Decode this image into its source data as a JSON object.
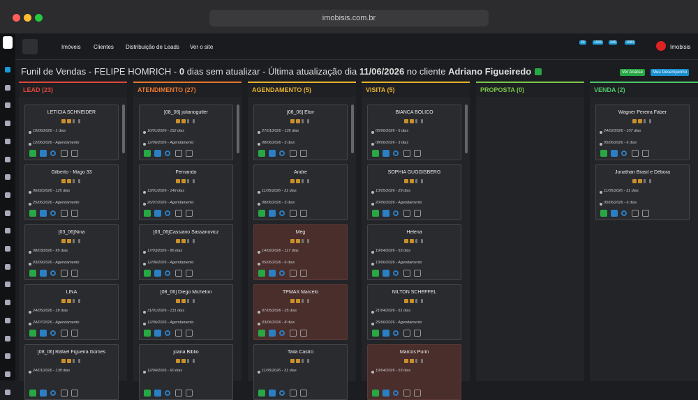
{
  "browser": {
    "url": "imobisis.com.br"
  },
  "nav": {
    "items": [
      "Imóveis",
      "Clientes",
      "Distribuição de Leads",
      "Ver o site"
    ],
    "badges": [
      "30",
      "1006",
      "346",
      "1083"
    ],
    "brand": "Imobisis"
  },
  "header": {
    "prefix": "Funil de Vendas - FELIPE HOMRICH - ",
    "days": "0",
    "middle": " dias sem atualizar - Última atualização dia ",
    "date": "11/06/2026",
    "client_label": " no cliente ",
    "client": "Adriano Figueiredo",
    "buttons": [
      "Ver Análise",
      "Meu Desempenho"
    ]
  },
  "columns": [
    {
      "title": "LEAD (23)",
      "color": "#e0473c",
      "cards": [
        {
          "name": "LETÍCIA SCHNEIDER",
          "created": "10/06/2026 - 1 dias",
          "next": "12/06/2026 - Agendamento"
        },
        {
          "name": "Gilberto - Mago 33",
          "created": "06/02/2026 - 125 dias",
          "next": "25/06/2026 - Agendamento"
        },
        {
          "name": "[03_06]Nina",
          "created": "08/03/2026 - 95 dias",
          "next": "03/09/2026 - Agendamento"
        },
        {
          "name": "LINA",
          "created": "24/05/2026 - 18 dias",
          "next": "24/07/2026 - Agendamento"
        },
        {
          "name": "[08_06] Rafael Figueira Gomes",
          "created": "24/01/2026 - 138 dias"
        }
      ]
    },
    {
      "title": "ATENDIMENTO (27)",
      "color": "#e8772e",
      "cards": [
        {
          "name": "[08_06] julianogutler",
          "created": "10/01/2026 - 152 dias",
          "next": "12/06/2026 - Agendamento"
        },
        {
          "name": "Fernando",
          "created": "13/01/2026 - 149 dias",
          "next": "26/07/2026 - Agendamento"
        },
        {
          "name": "[03_06]Cassiano Sassanovicz",
          "created": "17/03/2026 - 86 dias",
          "next": "12/06/2026 - Agendamento"
        },
        {
          "name": "[08_06] Diego Michelon",
          "created": "31/01/2026 - 131 dias",
          "next": "12/06/2026 - Agendamento"
        },
        {
          "name": "joana Biblio",
          "created": "12/04/2026 - 60 dias"
        }
      ]
    },
    {
      "title": "AGENDAMENTO (5)",
      "color": "#e8b32e",
      "cards": [
        {
          "name": "[08_06] Eloir",
          "created": "27/01/2026 - 135 dias",
          "next": "08/06/2026 - 3 dias"
        },
        {
          "name": "Andre",
          "created": "11/05/2026 - 31 dias",
          "next": "08/06/2026 - 3 dias"
        },
        {
          "name": "Meg",
          "created": "14/02/2026 - 117 dias",
          "next": "05/06/2026 - 6 dias",
          "highlight": true
        },
        {
          "name": "TPMAX Marcelo",
          "created": "07/05/2026 - 35 dias",
          "next": "03/06/2026 - 8 dias",
          "highlight": true
        },
        {
          "name": "Taila Castro",
          "created": "11/05/2026 - 31 dias"
        }
      ]
    },
    {
      "title": "VISITA (5)",
      "color": "#e8b32e",
      "cards": [
        {
          "name": "BIANCA BOLICO",
          "created": "05/06/2026 - 6 dias",
          "next": "08/06/2026 - 3 dias"
        },
        {
          "name": "SOPHIA GUGGISBERG",
          "created": "13/05/2026 - 29 dias",
          "next": "20/06/2026 - Agendamento"
        },
        {
          "name": "Helena",
          "created": "19/04/2026 - 53 dias",
          "next": "13/06/2026 - Agendamento"
        },
        {
          "name": "NILTON SCHEFFEL",
          "created": "21/04/2026 - 51 dias",
          "next": "25/06/2026 - Agendamento"
        },
        {
          "name": "Marcos Purin",
          "created": "19/04/2026 - 53 dias",
          "highlight": true
        }
      ]
    },
    {
      "title": "PROPOSTA (0)",
      "color": "#7cc84a",
      "cards": []
    },
    {
      "title": "VENDA (2)",
      "color": "#4cc86a",
      "cards": [
        {
          "name": "Wagner Pereira Faber",
          "created": "24/02/2026 - 107 dias",
          "next": "05/06/2026 - 6 dias"
        },
        {
          "name": "Jonathan Brasil e Débora",
          "created": "11/05/2026 - 31 dias",
          "next": "05/06/2026 - 6 dias"
        }
      ]
    }
  ]
}
